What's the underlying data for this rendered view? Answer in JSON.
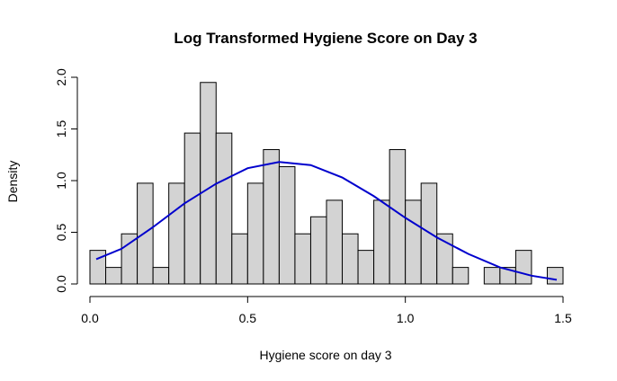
{
  "chart_data": {
    "type": "bar",
    "subtype": "histogram",
    "title": "Log Transformed Hygiene Score on Day 3",
    "xlabel": "Hygiene score on day 3",
    "ylabel": "Density",
    "xlim": [
      0,
      1.5
    ],
    "ylim": [
      0,
      2.0
    ],
    "x_ticks": [
      "0.0",
      "0.5",
      "1.0",
      "1.5"
    ],
    "y_ticks": [
      "0.0",
      "0.5",
      "1.0",
      "1.5",
      "2.0"
    ],
    "grid": false,
    "bin_width": 0.05,
    "bins": [
      {
        "start": 0.0,
        "end": 0.05,
        "density": 0.325
      },
      {
        "start": 0.05,
        "end": 0.1,
        "density": 0.16
      },
      {
        "start": 0.1,
        "end": 0.15,
        "density": 0.485
      },
      {
        "start": 0.15,
        "end": 0.2,
        "density": 0.975
      },
      {
        "start": 0.2,
        "end": 0.25,
        "density": 0.16
      },
      {
        "start": 0.25,
        "end": 0.3,
        "density": 0.975
      },
      {
        "start": 0.3,
        "end": 0.35,
        "density": 1.46
      },
      {
        "start": 0.35,
        "end": 0.4,
        "density": 1.95
      },
      {
        "start": 0.4,
        "end": 0.45,
        "density": 1.46
      },
      {
        "start": 0.45,
        "end": 0.5,
        "density": 0.485
      },
      {
        "start": 0.5,
        "end": 0.55,
        "density": 0.975
      },
      {
        "start": 0.55,
        "end": 0.6,
        "density": 1.3
      },
      {
        "start": 0.6,
        "end": 0.65,
        "density": 1.135
      },
      {
        "start": 0.65,
        "end": 0.7,
        "density": 0.485
      },
      {
        "start": 0.7,
        "end": 0.75,
        "density": 0.65
      },
      {
        "start": 0.75,
        "end": 0.8,
        "density": 0.81
      },
      {
        "start": 0.8,
        "end": 0.85,
        "density": 0.485
      },
      {
        "start": 0.85,
        "end": 0.9,
        "density": 0.325
      },
      {
        "start": 0.9,
        "end": 0.95,
        "density": 0.81
      },
      {
        "start": 0.95,
        "end": 1.0,
        "density": 1.3
      },
      {
        "start": 1.0,
        "end": 1.05,
        "density": 0.81
      },
      {
        "start": 1.05,
        "end": 1.1,
        "density": 0.975
      },
      {
        "start": 1.1,
        "end": 1.15,
        "density": 0.485
      },
      {
        "start": 1.15,
        "end": 1.2,
        "density": 0.16
      },
      {
        "start": 1.2,
        "end": 1.25,
        "density": 0.0
      },
      {
        "start": 1.25,
        "end": 1.3,
        "density": 0.16
      },
      {
        "start": 1.3,
        "end": 1.35,
        "density": 0.16
      },
      {
        "start": 1.35,
        "end": 1.4,
        "density": 0.325
      },
      {
        "start": 1.4,
        "end": 1.45,
        "density": 0.0
      },
      {
        "start": 1.45,
        "end": 1.5,
        "density": 0.16
      }
    ],
    "density_curve": {
      "color": "#0000cd",
      "points": [
        [
          0.02,
          0.24
        ],
        [
          0.1,
          0.34
        ],
        [
          0.2,
          0.55
        ],
        [
          0.3,
          0.78
        ],
        [
          0.4,
          0.97
        ],
        [
          0.5,
          1.12
        ],
        [
          0.6,
          1.18
        ],
        [
          0.7,
          1.15
        ],
        [
          0.8,
          1.03
        ],
        [
          0.9,
          0.85
        ],
        [
          1.0,
          0.64
        ],
        [
          1.1,
          0.45
        ],
        [
          1.2,
          0.29
        ],
        [
          1.3,
          0.16
        ],
        [
          1.4,
          0.08
        ],
        [
          1.48,
          0.04
        ]
      ]
    },
    "bar_fill": "#d3d3d3",
    "bar_stroke": "#000000"
  }
}
